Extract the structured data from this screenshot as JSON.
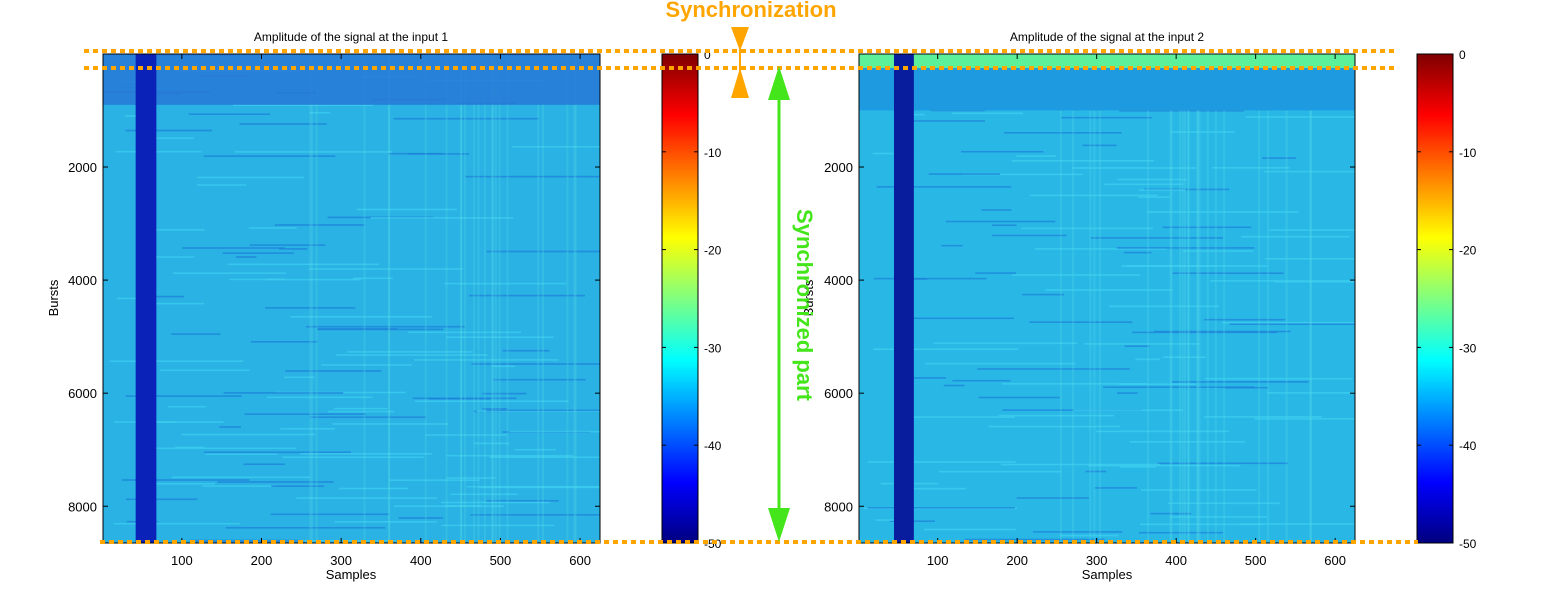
{
  "annotations": {
    "sync_label": "Synchronization",
    "synced_label": "Synchronized part",
    "sync_color": "#FFA500",
    "synced_color": "#44E51A"
  },
  "colormap": "jet",
  "chart_data": [
    {
      "type": "heatmap",
      "title": "Amplitude of the signal at the input 1",
      "xlabel": "Samples",
      "ylabel": "Bursts",
      "xlim": [
        1,
        625
      ],
      "ylim": [
        1,
        8650
      ],
      "y_reversed": true,
      "x_ticks": [
        "100",
        "200",
        "300",
        "400",
        "500",
        "600"
      ],
      "x_tick_values": [
        100,
        200,
        300,
        400,
        500,
        600
      ],
      "y_ticks": [
        "2000",
        "4000",
        "6000",
        "8000"
      ],
      "y_tick_values": [
        2000,
        4000,
        6000,
        8000
      ],
      "colorbar": {
        "ticks": [
          "0",
          "-10",
          "-20",
          "-30",
          "-40",
          "-50"
        ],
        "tick_values": [
          0,
          -10,
          -20,
          -30,
          -40,
          -50
        ],
        "clim": [
          -50,
          0
        ]
      },
      "background_level": -30,
      "dark_band": {
        "samples": [
          42,
          68
        ],
        "level": -46
      },
      "sync_block": {
        "bursts": [
          1,
          900
        ],
        "level": -36
      }
    },
    {
      "type": "heatmap",
      "title": "Amplitude of the signal at the input 2",
      "xlabel": "Samples",
      "ylabel": "Bursts",
      "xlim": [
        1,
        625
      ],
      "ylim": [
        1,
        8650
      ],
      "y_reversed": true,
      "x_ticks": [
        "100",
        "200",
        "300",
        "400",
        "500",
        "600"
      ],
      "x_tick_values": [
        100,
        200,
        300,
        400,
        500,
        600
      ],
      "y_ticks": [
        "2000",
        "4000",
        "6000",
        "8000"
      ],
      "y_tick_values": [
        2000,
        4000,
        6000,
        8000
      ],
      "colorbar": {
        "ticks": [
          "0",
          "-10",
          "-20",
          "-30",
          "-40",
          "-50"
        ],
        "tick_values": [
          0,
          -10,
          -20,
          -30,
          -40,
          -50
        ],
        "clim": [
          -50,
          0
        ]
      },
      "background_level": -30,
      "dark_band": {
        "samples": [
          45,
          70
        ],
        "level": -48
      },
      "top_block": {
        "bursts": [
          1,
          250
        ],
        "level": -24
      },
      "sync_block": {
        "bursts": [
          250,
          1000
        ],
        "level": -36
      }
    }
  ]
}
